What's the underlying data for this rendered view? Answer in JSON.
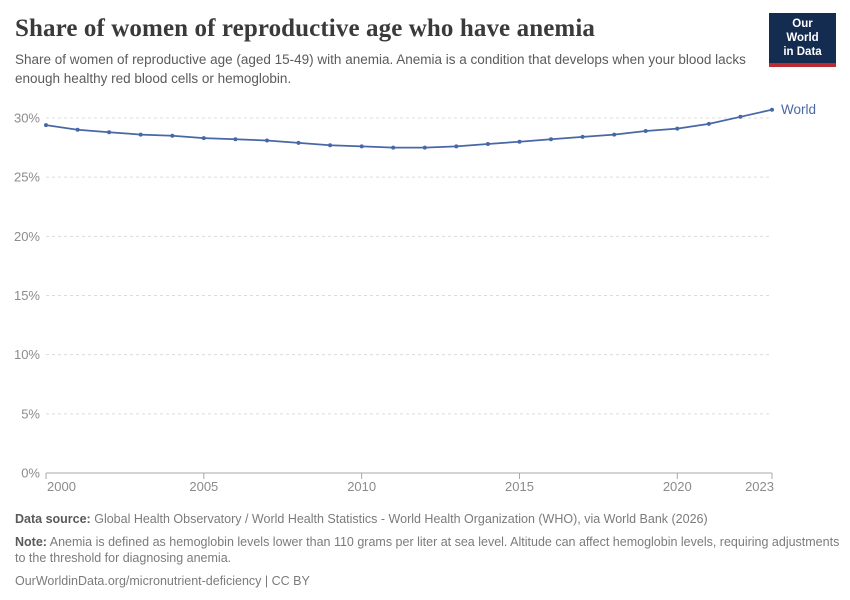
{
  "header": {
    "title": "Share of women of reproductive age who have anemia",
    "subtitle": "Share of women of reproductive age (aged 15-49) with anemia. Anemia is a condition that develops when your blood lacks enough healthy red blood cells or hemoglobin.",
    "logo": {
      "line1": "Our World",
      "line2": "in Data"
    }
  },
  "chart_data": {
    "type": "line",
    "title": "Share of women of reproductive age who have anemia",
    "x": [
      2000,
      2001,
      2002,
      2003,
      2004,
      2005,
      2006,
      2007,
      2008,
      2009,
      2010,
      2011,
      2012,
      2013,
      2014,
      2015,
      2016,
      2017,
      2018,
      2019,
      2020,
      2021,
      2022,
      2023
    ],
    "series": [
      {
        "name": "World",
        "color": "#4868a5",
        "values": [
          29.4,
          29.0,
          28.8,
          28.6,
          28.5,
          28.3,
          28.2,
          28.1,
          27.9,
          27.7,
          27.6,
          27.5,
          27.5,
          27.6,
          27.8,
          28.0,
          28.2,
          28.4,
          28.6,
          28.9,
          29.1,
          29.5,
          30.1,
          30.7
        ]
      }
    ],
    "xlabel": "",
    "ylabel": "",
    "xlim": [
      2000,
      2023
    ],
    "ylim": [
      0,
      31
    ],
    "xticks": [
      2000,
      2005,
      2010,
      2015,
      2020,
      2023
    ],
    "yticks": [
      0,
      5,
      10,
      15,
      20,
      25,
      30
    ],
    "ytick_suffix": "%",
    "grid": "horizontal-dashed",
    "legend": "end-of-line-label"
  },
  "footer": {
    "data_source_label": "Data source:",
    "data_source": "Global Health Observatory / World Health Statistics - World Health Organization (WHO), via World Bank (2026)",
    "note_label": "Note:",
    "note": "Anemia is defined as hemoglobin levels lower than 110 grams per liter at sea level. Altitude can affect hemoglobin levels, requiring adjustments to the threshold for diagnosing anemia.",
    "citation": "OurWorldinData.org/micronutrient-deficiency | CC BY"
  },
  "colors": {
    "line": "#4868a5",
    "grid": "#dcdcdc",
    "axis": "#a8a8a8",
    "tick_label": "#8b8b8b",
    "title": "#3a3a3a",
    "subtitle": "#5b5b5b",
    "footer_text": "#7b7b7b",
    "logo_bg": "#132c4f",
    "logo_bar": "#bb2b32"
  }
}
